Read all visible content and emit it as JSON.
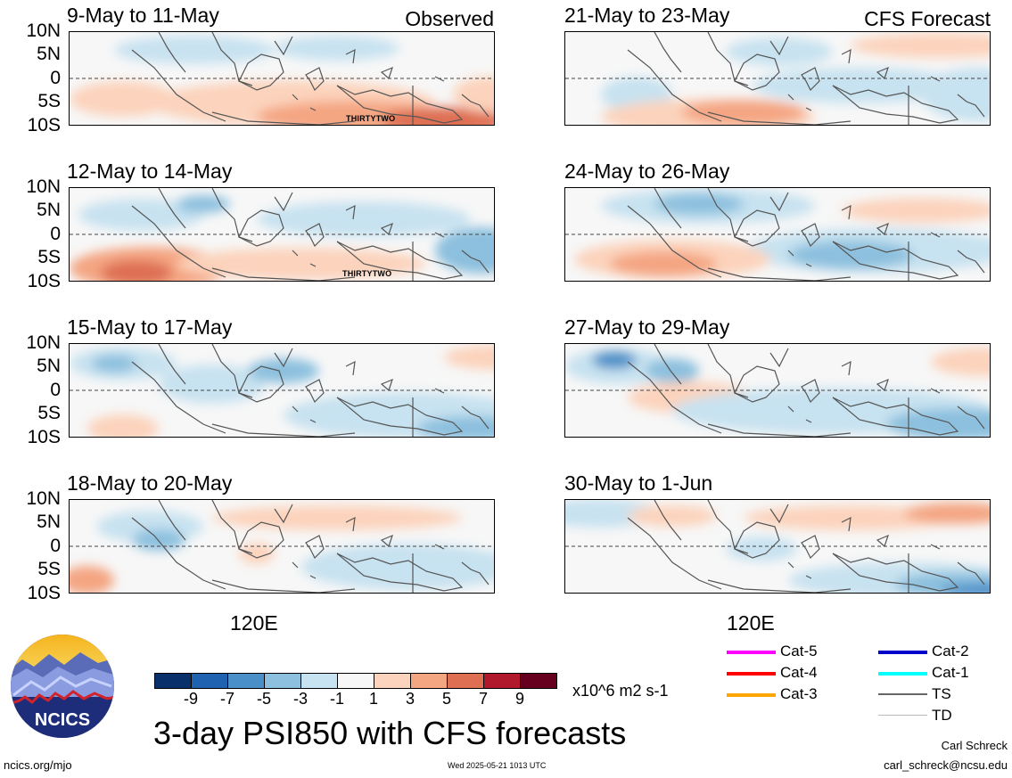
{
  "chart_data": {
    "type": "heatmap",
    "title": "3-day PSI850 with CFS forecasts",
    "variable": "PSI850 (850 hPa streamfunction anomaly)",
    "units": "x10^6 m2 s-1",
    "x_tick_labels": [
      "120E"
    ],
    "y_tick_labels": [
      "10N",
      "5N",
      "0",
      "5S",
      "10S"
    ],
    "ylim": [
      "10S",
      "10N"
    ],
    "colorbar": {
      "ticks": [
        "-9",
        "-7",
        "-5",
        "-3",
        "-1",
        "1",
        "3",
        "5",
        "7",
        "9"
      ],
      "colors": [
        "#08306b",
        "#1f62b0",
        "#4a8fc8",
        "#8cc0de",
        "#c7e2f0",
        "#f7f7f7",
        "#fcd3bc",
        "#f4a582",
        "#de6f52",
        "#b2182b",
        "#67001f"
      ]
    },
    "columns": [
      {
        "label": "Observed",
        "panels": [
          {
            "title": "9-May to 11-May",
            "storm_label": "THIRTYTWO"
          },
          {
            "title": "12-May to 14-May",
            "storm_label": "THIRTYTWO"
          },
          {
            "title": "15-May to 17-May"
          },
          {
            "title": "18-May to 20-May"
          }
        ]
      },
      {
        "label": "CFS Forecast",
        "panels": [
          {
            "title": "21-May to 23-May"
          },
          {
            "title": "24-May to 26-May"
          },
          {
            "title": "27-May to 29-May"
          },
          {
            "title": "30-May to 1-Jun"
          }
        ]
      }
    ]
  },
  "legend": {
    "items": [
      {
        "label": "Cat-5",
        "color": "#ff00ff"
      },
      {
        "label": "Cat-4",
        "color": "#ff0000"
      },
      {
        "label": "Cat-3",
        "color": "#ffa500"
      },
      {
        "label": "Cat-2",
        "color": "#0000cd"
      },
      {
        "label": "Cat-1",
        "color": "#00ffff"
      },
      {
        "label": "TS",
        "color": "#666666"
      },
      {
        "label": "TD",
        "color": "#bbbbbb"
      }
    ]
  },
  "logo": {
    "text": "NCICS"
  },
  "footer": {
    "url": "ncics.org/mjo",
    "timestamp": "Wed 2025-05-21 1013 UTC",
    "author": "Carl Schreck",
    "email": "carl_schreck@ncsu.edu"
  }
}
